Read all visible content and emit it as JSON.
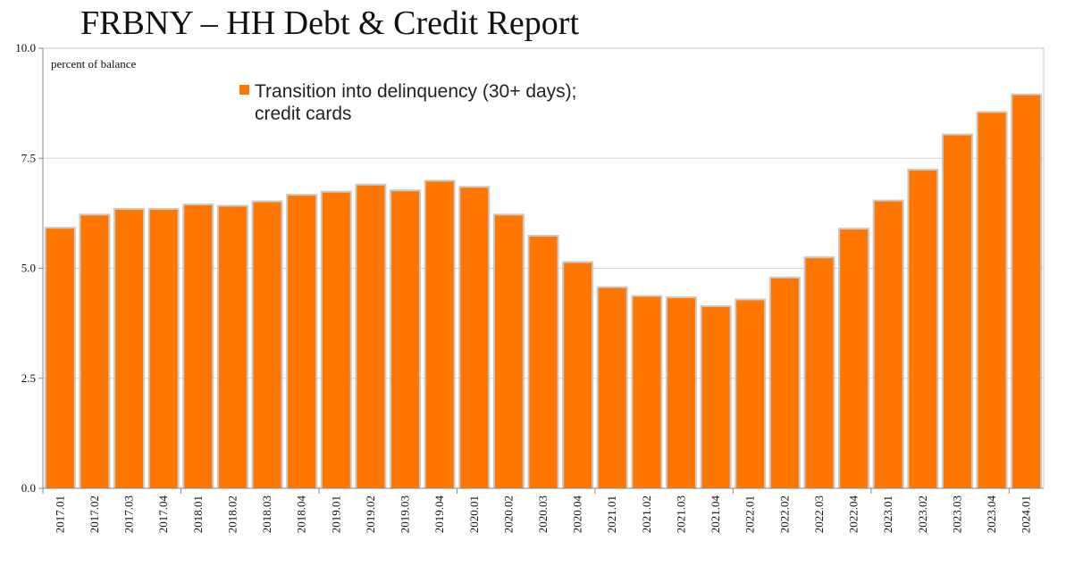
{
  "chart_data": {
    "type": "bar",
    "title": "FRBNY – HH Debt & Credit Report",
    "ylabel": "percent of balance",
    "xlabel": "",
    "ylim": [
      0,
      10
    ],
    "yticks": [
      "0.0",
      "2.5",
      "5.0",
      "7.5",
      "10.0"
    ],
    "grid": "horizontal",
    "legend_position": "top-center",
    "legend_lines": [
      "Transition into delinquency (30+ days);",
      "credit cards"
    ],
    "series": [
      {
        "name": "Transition into delinquency (30+ days); credit cards",
        "color": "#ff7700",
        "values": [
          5.9,
          6.2,
          6.33,
          6.33,
          6.43,
          6.4,
          6.5,
          6.65,
          6.72,
          6.88,
          6.75,
          6.97,
          6.83,
          6.2,
          5.72,
          5.12,
          4.55,
          4.35,
          4.32,
          4.12,
          4.27,
          4.77,
          5.23,
          5.88,
          6.52,
          7.22,
          8.02,
          8.53,
          8.93
        ]
      }
    ],
    "categories": [
      "2017.01",
      "2017.02",
      "2017.03",
      "2017.04",
      "2018.01",
      "2018.02",
      "2018.03",
      "2018.04",
      "2019.01",
      "2019.02",
      "2019.03",
      "2019.04",
      "2020.01",
      "2020.02",
      "2020.03",
      "2020.04",
      "2021.01",
      "2021.02",
      "2021.03",
      "2021.04",
      "2022.01",
      "2022.02",
      "2022.03",
      "2022.04",
      "2023.01",
      "2023.02",
      "2023.03",
      "2023.04",
      "2024.01"
    ]
  },
  "colors": {
    "bar": "#ff7700",
    "bar_shadow": "#b8b8b8",
    "grid": "#d4d4d4",
    "axis": "#8a8a8a"
  }
}
